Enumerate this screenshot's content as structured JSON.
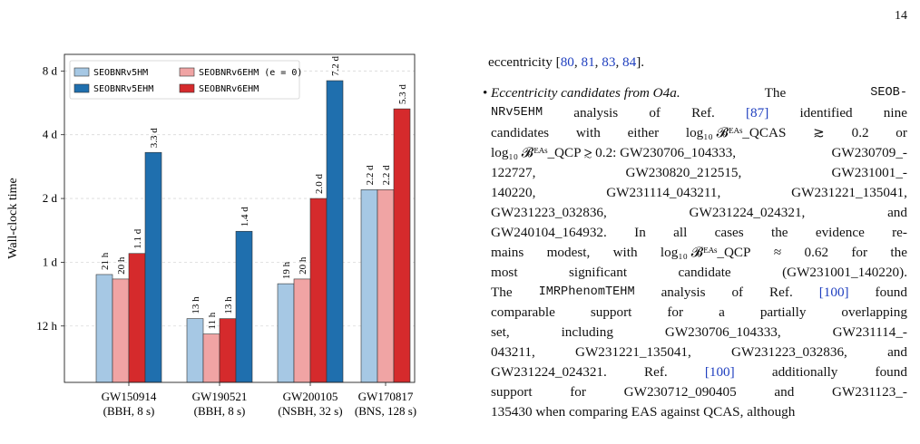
{
  "page": {
    "number": "14"
  },
  "chart_data": {
    "type": "bar",
    "xlabel": "",
    "ylabel": "Wall-clock time",
    "y_scale": "log",
    "ylim_hours": [
      6.5,
      230
    ],
    "y_ticks": [
      {
        "value_hours": 12,
        "label": "12 h"
      },
      {
        "value_hours": 24,
        "label": "1 d"
      },
      {
        "value_hours": 48,
        "label": "2 d"
      },
      {
        "value_hours": 96,
        "label": "4 d"
      },
      {
        "value_hours": 192,
        "label": "8 d"
      }
    ],
    "grid": true,
    "legend_position": "top-left",
    "categories": [
      {
        "name": "GW150914",
        "detail": "(BBH, 8 s)"
      },
      {
        "name": "GW190521",
        "detail": "(BBH, 8 s)"
      },
      {
        "name": "GW200105",
        "detail": "(NSBH, 32 s)"
      },
      {
        "name": "GW170817",
        "detail": "(BNS, 128 s)"
      }
    ],
    "series": [
      {
        "name": "SEOBNRv5HM",
        "color": "#a6c8e4",
        "values_hours": [
          21,
          13,
          19,
          52.8
        ],
        "labels": [
          "21 h",
          "13 h",
          "19 h",
          "2.2 d"
        ]
      },
      {
        "name": "SEOBNRv6EHM (e = 0)",
        "color": "#f0a4a4",
        "values_hours": [
          20,
          11,
          20,
          52.8
        ],
        "labels": [
          "20 h",
          "11 h",
          "20 h",
          "2.2 d"
        ]
      },
      {
        "name": "SEOBNRv6EHM",
        "color": "#d52a2c",
        "values_hours": [
          26.4,
          13,
          48,
          127.2
        ],
        "labels": [
          "1.1 d",
          "13 h",
          "2.0 d",
          "5.3 d"
        ]
      },
      {
        "name": "SEOBNRv5EHM",
        "color": "#1f6fae",
        "values_hours": [
          79.2,
          33.6,
          172.8,
          null
        ],
        "labels": [
          "3.3 d",
          "1.4 d",
          "7.2 d",
          null
        ]
      }
    ]
  },
  "text": {
    "cont_before": "eccentricity [",
    "cont_refs": [
      "80",
      "81",
      "83",
      "84"
    ],
    "cont_after": "].",
    "bullet_lines": [
      [
        {
          "t": "Eccentricity candidates from O4a.",
          "s": "it"
        },
        {
          "t": "The",
          "s": ""
        },
        {
          "t": "SEOB-",
          "s": "tt"
        }
      ],
      [
        {
          "t": "NRv5EHM",
          "s": "tt"
        },
        {
          "t": "analysis",
          "s": ""
        },
        {
          "t": "of",
          "s": ""
        },
        {
          "t": "Ref.",
          "s": ""
        },
        {
          "t": "[87]",
          "s": "cite"
        },
        {
          "t": "identified",
          "s": ""
        },
        {
          "t": "nine",
          "s": ""
        }
      ],
      [
        {
          "t": "candidates",
          "s": ""
        },
        {
          "t": "with",
          "s": ""
        },
        {
          "t": "either",
          "s": ""
        },
        {
          "t": "log₁₀ 𝓑ᴱᴬˢ_QCAS",
          "s": ""
        },
        {
          "t": "≳",
          "s": ""
        },
        {
          "t": "0.2",
          "s": ""
        },
        {
          "t": "or",
          "s": ""
        }
      ],
      [
        {
          "t": "log₁₀ 𝓑ᴱᴬˢ_QCP ≳ 0.2: GW230706_104333,",
          "s": ""
        },
        {
          "t": "GW230709_-",
          "s": ""
        }
      ],
      [
        {
          "t": "122727,",
          "s": ""
        },
        {
          "t": "GW230820_212515,",
          "s": ""
        },
        {
          "t": "GW231001_-",
          "s": ""
        }
      ],
      [
        {
          "t": "140220,",
          "s": ""
        },
        {
          "t": "GW231114_043211,",
          "s": ""
        },
        {
          "t": "GW231221_135041,",
          "s": ""
        }
      ],
      [
        {
          "t": "GW231223_032836,",
          "s": ""
        },
        {
          "t": "GW231224_024321,",
          "s": ""
        },
        {
          "t": "and",
          "s": ""
        }
      ],
      [
        {
          "t": "GW240104_164932.",
          "s": ""
        },
        {
          "t": "In",
          "s": ""
        },
        {
          "t": "all",
          "s": ""
        },
        {
          "t": "cases",
          "s": ""
        },
        {
          "t": "the",
          "s": ""
        },
        {
          "t": "evidence",
          "s": ""
        },
        {
          "t": "re-",
          "s": ""
        }
      ],
      [
        {
          "t": "mains",
          "s": ""
        },
        {
          "t": "modest,",
          "s": ""
        },
        {
          "t": "with",
          "s": ""
        },
        {
          "t": "log₁₀ 𝓑ᴱᴬˢ_QCP",
          "s": ""
        },
        {
          "t": "≈",
          "s": ""
        },
        {
          "t": "0.62",
          "s": ""
        },
        {
          "t": "for",
          "s": ""
        },
        {
          "t": "the",
          "s": ""
        }
      ],
      [
        {
          "t": "most",
          "s": ""
        },
        {
          "t": "significant",
          "s": ""
        },
        {
          "t": "candidate",
          "s": ""
        },
        {
          "t": "(GW231001_140220).",
          "s": ""
        }
      ],
      [
        {
          "t": "The",
          "s": ""
        },
        {
          "t": "IMRPhenomTEHM",
          "s": "tt"
        },
        {
          "t": "analysis",
          "s": ""
        },
        {
          "t": "of",
          "s": ""
        },
        {
          "t": "Ref.",
          "s": ""
        },
        {
          "t": "[100]",
          "s": "cite"
        },
        {
          "t": "found",
          "s": ""
        }
      ],
      [
        {
          "t": "comparable",
          "s": ""
        },
        {
          "t": "support",
          "s": ""
        },
        {
          "t": "for",
          "s": ""
        },
        {
          "t": "a",
          "s": ""
        },
        {
          "t": "partially",
          "s": ""
        },
        {
          "t": "overlapping",
          "s": ""
        }
      ],
      [
        {
          "t": "set,",
          "s": ""
        },
        {
          "t": "including",
          "s": ""
        },
        {
          "t": "GW230706_104333,",
          "s": ""
        },
        {
          "t": "GW231114_-",
          "s": ""
        }
      ],
      [
        {
          "t": "043211,",
          "s": ""
        },
        {
          "t": "GW231221_135041,",
          "s": ""
        },
        {
          "t": "GW231223_032836,",
          "s": ""
        },
        {
          "t": "and",
          "s": ""
        }
      ],
      [
        {
          "t": "GW231224_024321.",
          "s": ""
        },
        {
          "t": "Ref.",
          "s": ""
        },
        {
          "t": "[100]",
          "s": "cite"
        },
        {
          "t": "additionally",
          "s": ""
        },
        {
          "t": "found",
          "s": ""
        }
      ],
      [
        {
          "t": "support",
          "s": ""
        },
        {
          "t": "for",
          "s": ""
        },
        {
          "t": "GW230712_090405",
          "s": ""
        },
        {
          "t": "and",
          "s": ""
        },
        {
          "t": "GW231123_-",
          "s": ""
        }
      ],
      [
        {
          "t": "135430 when comparing EAS against QCAS, although",
          "s": ""
        }
      ]
    ]
  }
}
